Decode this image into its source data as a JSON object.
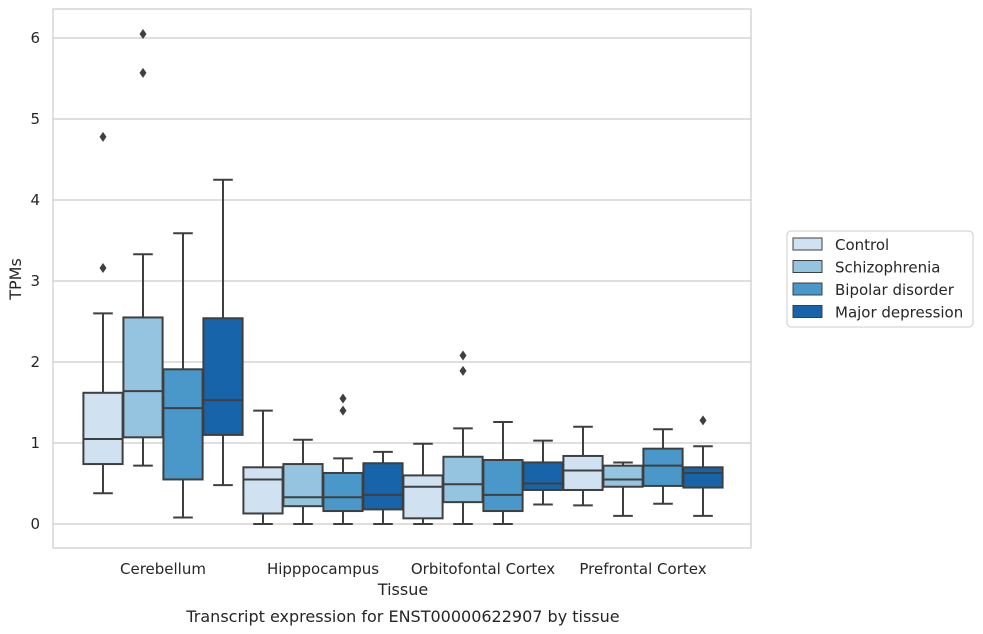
{
  "chart_data": {
    "type": "boxplot",
    "title": "Transcript expression for ENST00000622907 by tissue",
    "xlabel": "Tissue",
    "ylabel": "TPMs",
    "ylim": [
      -0.3,
      6.35
    ],
    "yticks": [
      "0",
      "1",
      "2",
      "3",
      "4",
      "5",
      "6"
    ],
    "grid": true,
    "legend_position": "right",
    "categories": [
      "Cerebellum",
      "Hipppocampus",
      "Orbitofontal Cortex",
      "Prefrontal Cortex"
    ],
    "series": [
      {
        "name": "Control",
        "color": "#d0e1f2",
        "boxes": [
          {
            "whislo": 0.38,
            "q1": 0.74,
            "med": 1.05,
            "q3": 1.62,
            "whishi": 2.6,
            "fliers": [
              3.16,
              4.78
            ]
          },
          {
            "whislo": 0.0,
            "q1": 0.13,
            "med": 0.55,
            "q3": 0.7,
            "whishi": 1.4,
            "fliers": []
          },
          {
            "whislo": 0.0,
            "q1": 0.07,
            "med": 0.46,
            "q3": 0.6,
            "whishi": 0.99,
            "fliers": []
          },
          {
            "whislo": 0.23,
            "q1": 0.42,
            "med": 0.66,
            "q3": 0.84,
            "whishi": 1.2,
            "fliers": []
          }
        ]
      },
      {
        "name": "Schizophrenia",
        "color": "#94c4df",
        "boxes": [
          {
            "whislo": 0.72,
            "q1": 1.07,
            "med": 1.64,
            "q3": 2.55,
            "whishi": 3.33,
            "fliers": [
              5.57,
              6.05
            ]
          },
          {
            "whislo": 0.0,
            "q1": 0.22,
            "med": 0.33,
            "q3": 0.74,
            "whishi": 1.04,
            "fliers": []
          },
          {
            "whislo": 0.0,
            "q1": 0.27,
            "med": 0.49,
            "q3": 0.83,
            "whishi": 1.18,
            "fliers": [
              1.89,
              2.08
            ]
          },
          {
            "whislo": 0.1,
            "q1": 0.46,
            "med": 0.55,
            "q3": 0.72,
            "whishi": 0.76,
            "fliers": []
          }
        ]
      },
      {
        "name": "Bipolar disorder",
        "color": "#4a98c9",
        "boxes": [
          {
            "whislo": 0.08,
            "q1": 0.55,
            "med": 1.43,
            "q3": 1.91,
            "whishi": 3.59,
            "fliers": []
          },
          {
            "whislo": 0.0,
            "q1": 0.16,
            "med": 0.33,
            "q3": 0.63,
            "whishi": 0.81,
            "fliers": [
              1.4,
              1.55
            ]
          },
          {
            "whislo": 0.0,
            "q1": 0.16,
            "med": 0.36,
            "q3": 0.79,
            "whishi": 1.26,
            "fliers": []
          },
          {
            "whislo": 0.25,
            "q1": 0.47,
            "med": 0.72,
            "q3": 0.93,
            "whishi": 1.17,
            "fliers": []
          }
        ]
      },
      {
        "name": "Major depression",
        "color": "#1764ab",
        "boxes": [
          {
            "whislo": 0.48,
            "q1": 1.1,
            "med": 1.53,
            "q3": 2.54,
            "whishi": 4.25,
            "fliers": []
          },
          {
            "whislo": 0.0,
            "q1": 0.18,
            "med": 0.36,
            "q3": 0.75,
            "whishi": 0.89,
            "fliers": []
          },
          {
            "whislo": 0.24,
            "q1": 0.42,
            "med": 0.5,
            "q3": 0.76,
            "whishi": 1.03,
            "fliers": []
          },
          {
            "whislo": 0.1,
            "q1": 0.45,
            "med": 0.63,
            "q3": 0.7,
            "whishi": 0.96,
            "fliers": [
              1.28
            ]
          }
        ]
      }
    ]
  }
}
